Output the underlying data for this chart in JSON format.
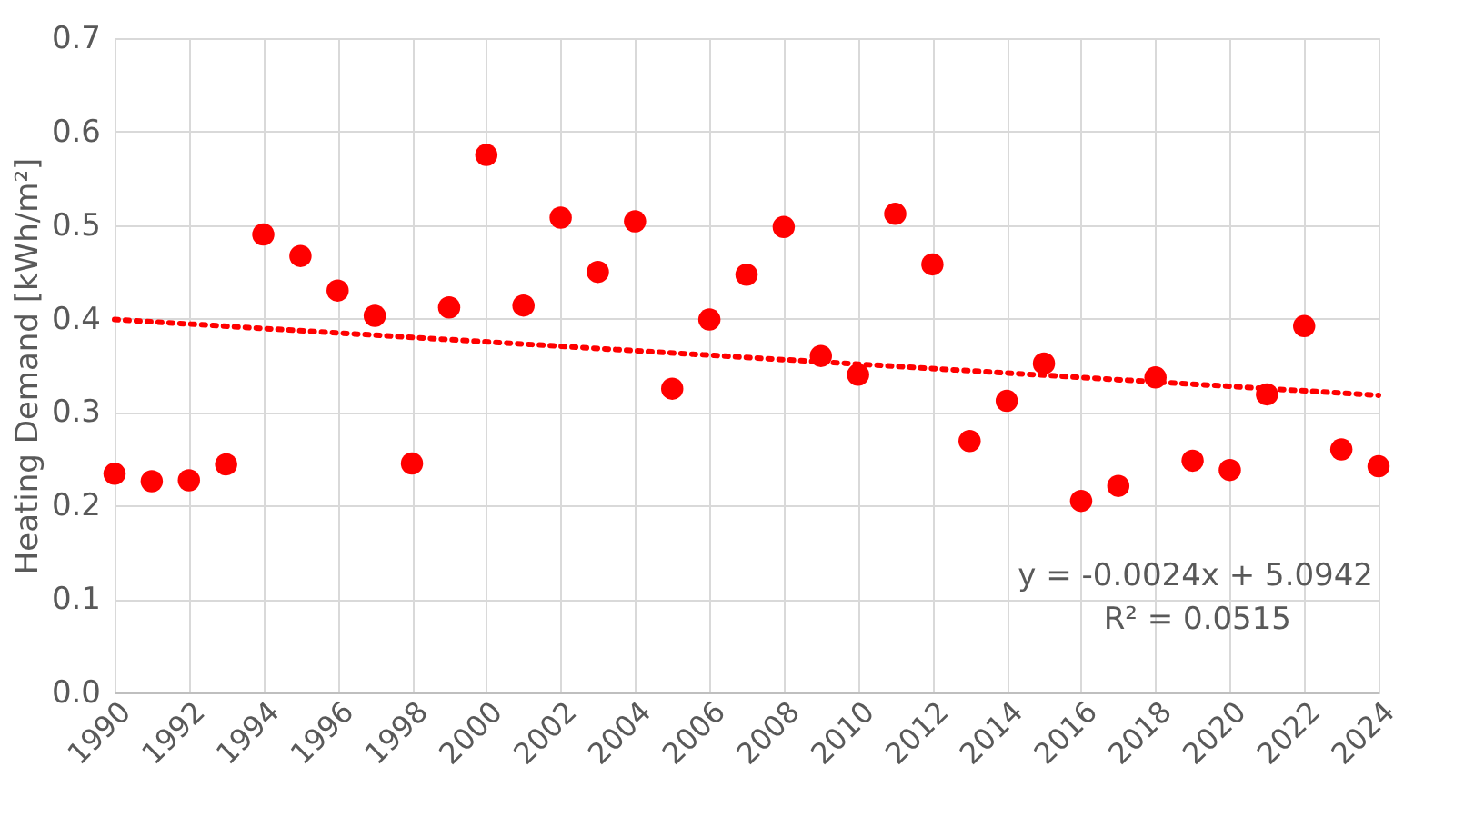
{
  "chart_data": {
    "type": "scatter",
    "ylabel": "Heating  Demand [kWh/m²]",
    "x": [
      1990,
      1991,
      1992,
      1993,
      1994,
      1995,
      1996,
      1997,
      1998,
      1999,
      2000,
      2001,
      2002,
      2003,
      2004,
      2005,
      2006,
      2007,
      2008,
      2009,
      2010,
      2011,
      2012,
      2013,
      2014,
      2015,
      2016,
      2017,
      2018,
      2019,
      2020,
      2021,
      2022,
      2023,
      2024
    ],
    "series": [
      {
        "color": "#ff0000",
        "marker": "circle",
        "values": [
          0.234,
          0.226,
          0.227,
          0.244,
          0.49,
          0.467,
          0.43,
          0.403,
          0.245,
          0.412,
          0.575,
          0.414,
          0.508,
          0.45,
          0.504,
          0.325,
          0.399,
          0.447,
          0.498,
          0.36,
          0.34,
          0.512,
          0.458,
          0.269,
          0.312,
          0.352,
          0.205,
          0.221,
          0.337,
          0.248,
          0.238,
          0.319,
          0.392,
          0.26,
          0.242
        ]
      },
      {
        "type": "line",
        "color": "#ff0000",
        "line_style": "dotted",
        "marker": "none",
        "x": [
          1990,
          2024
        ],
        "values": [
          0.399,
          0.318
        ]
      }
    ],
    "annotations": [
      "y = -0.0024x + 5.0942",
      "R² = 0.0515"
    ],
    "xlim": [
      1990,
      2024
    ],
    "xticks": [
      1990,
      1992,
      1994,
      1996,
      1998,
      2000,
      2002,
      2004,
      2006,
      2008,
      2010,
      2012,
      2014,
      2016,
      2018,
      2020,
      2022,
      2024
    ],
    "ylim": [
      0,
      0.7
    ],
    "yticks": [
      {
        "value": 0,
        "label": "0.0"
      },
      {
        "value": 0.1,
        "label": "0.1"
      },
      {
        "value": 0.2,
        "label": "0.2"
      },
      {
        "value": 0.3,
        "label": "0.3"
      },
      {
        "value": 0.4,
        "label": "0.4"
      },
      {
        "value": 0.5,
        "label": "0.5"
      },
      {
        "value": 0.6,
        "label": "0.6"
      },
      {
        "value": 0.7,
        "label": "0.7"
      }
    ],
    "grid": true
  }
}
